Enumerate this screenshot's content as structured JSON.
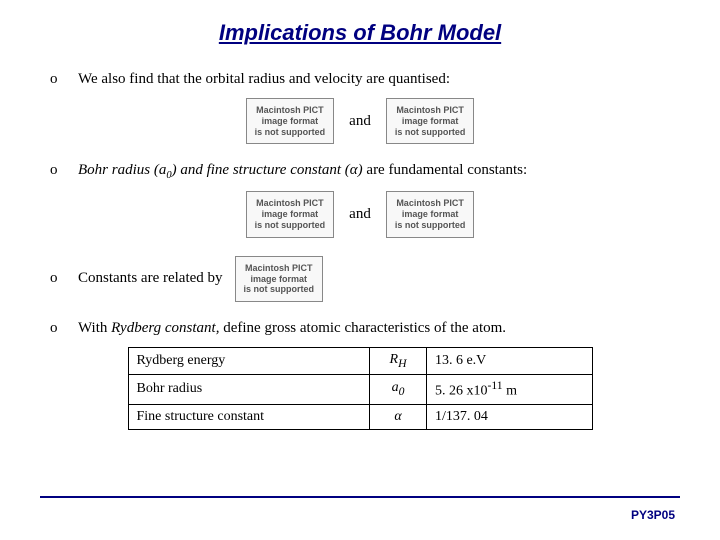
{
  "title": "Implications of Bohr Model",
  "bullets": {
    "b1_marker": "o",
    "b1_text": "We also find that the orbital radius and velocity are quantised:",
    "b2_marker": "o",
    "b3_marker": "o",
    "b3_text": "Constants are related by",
    "b4_marker": "o"
  },
  "bullet2_parts": {
    "p1": "Bohr radius (a",
    "p2": ") and ",
    "p3": "fine structure constant (",
    "p4": ")",
    "p5": " are fundamental constants:"
  },
  "bullet4_parts": {
    "p1": "With",
    "p2": " Rydberg constant,",
    "p3": " define gross atomic characteristics of the atom."
  },
  "and_label": "and",
  "placeholder": {
    "l1": "Macintosh PICT",
    "l2": "image format",
    "l3": "is not supported"
  },
  "table": {
    "rows": [
      {
        "name": "Rydberg energy",
        "symbol_html": "R<sub>H</sub>",
        "value_html": "13. 6 e.V"
      },
      {
        "name": "Bohr radius",
        "symbol_html": "a<sub>0</sub>",
        "value_html": "5. 26 x10<sup>-11</sup> m"
      },
      {
        "name": "Fine structure constant",
        "symbol_html": "α",
        "value_html": "1/137. 04"
      }
    ]
  },
  "footer": "PY3P05",
  "colors": {
    "title": "#000080",
    "rule": "#000080",
    "text": "#000000",
    "bg": "#ffffff"
  },
  "symbols": {
    "alpha": "α",
    "sub0": "0"
  }
}
